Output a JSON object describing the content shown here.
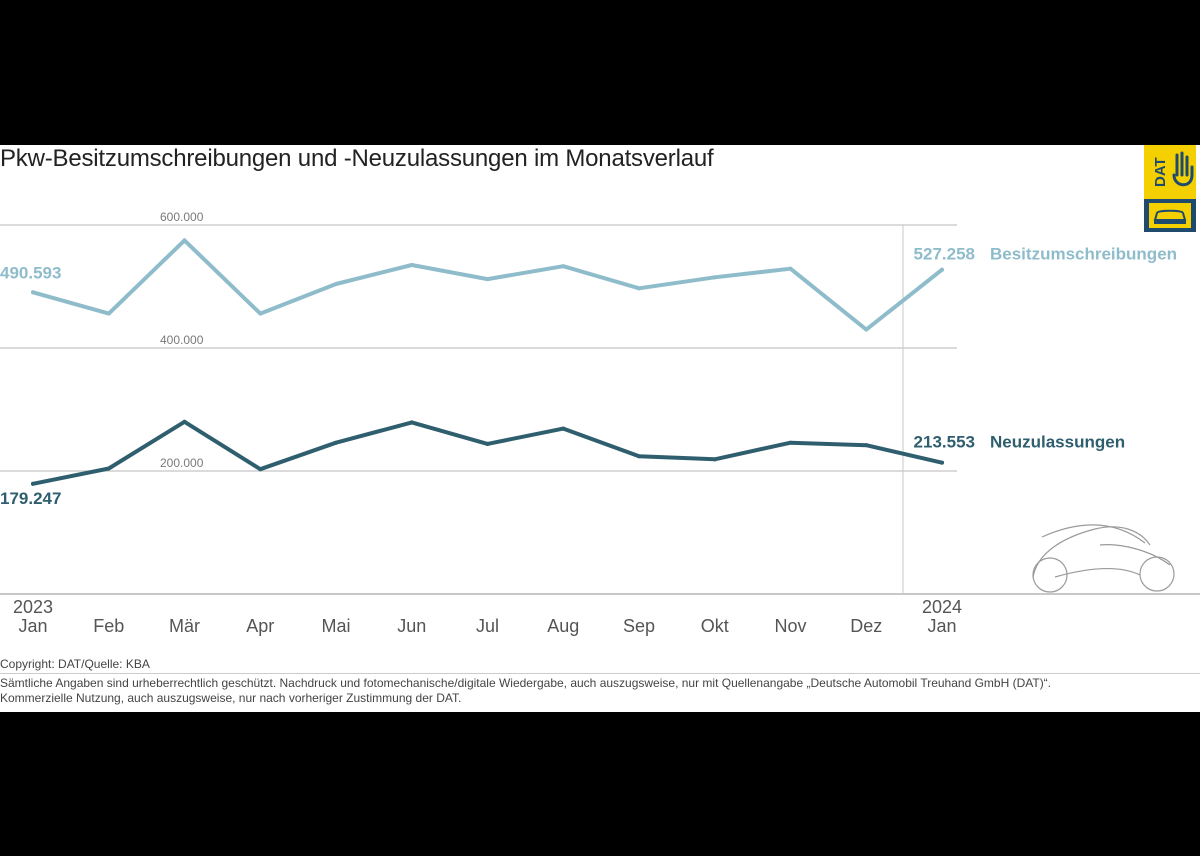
{
  "title": "Pkw-Besitzumschreibungen und -Neuzulassungen im Monatsverlauf",
  "logo_text": "DAT",
  "colors": {
    "besitz": "#8fbccb",
    "neu": "#2f5f6f",
    "logo_bg": "#f5d000",
    "logo_dark": "#1e4a6e"
  },
  "chart_data": {
    "type": "line",
    "categories": [
      "Jan",
      "Feb",
      "Mär",
      "Apr",
      "Mai",
      "Jun",
      "Jul",
      "Aug",
      "Sep",
      "Okt",
      "Nov",
      "Dez",
      "Jan"
    ],
    "year_labels": [
      {
        "index": 0,
        "label": "2023"
      },
      {
        "index": 12,
        "label": "2024"
      }
    ],
    "yticks": [
      {
        "value": 200000,
        "label": "200.000"
      },
      {
        "value": 400000,
        "label": "400.000"
      },
      {
        "value": 600000,
        "label": "600.000"
      }
    ],
    "ylim": [
      0,
      600000
    ],
    "series": [
      {
        "key": "besitz",
        "name": "Besitzumschreibungen",
        "values": [
          490593,
          456000,
          575000,
          456000,
          504000,
          535000,
          512000,
          533000,
          497000,
          515000,
          529000,
          430000,
          527258
        ],
        "first_label": "490.593",
        "last_label": "527.258"
      },
      {
        "key": "neu",
        "name": "Neuzulassungen",
        "values": [
          179247,
          204000,
          280000,
          203000,
          246000,
          279000,
          244000,
          269000,
          224000,
          219000,
          246000,
          242000,
          213553
        ],
        "first_label": "179.247",
        "last_label": "213.553"
      }
    ],
    "grid": true,
    "legend": "right"
  },
  "footer": {
    "copyright": "Copyright: DAT/Quelle: KBA",
    "line1": "Sämtliche Angaben sind urheberrechtlich geschützt. Nachdruck und fotomechanische/digitale Wiedergabe, auch auszugsweise, nur mit Quellenangabe „Deutsche Automobil Treuhand GmbH (DAT)“.",
    "line2": "Kommerzielle Nutzung, auch auszugsweise, nur nach vorheriger Zustimmung der DAT."
  }
}
